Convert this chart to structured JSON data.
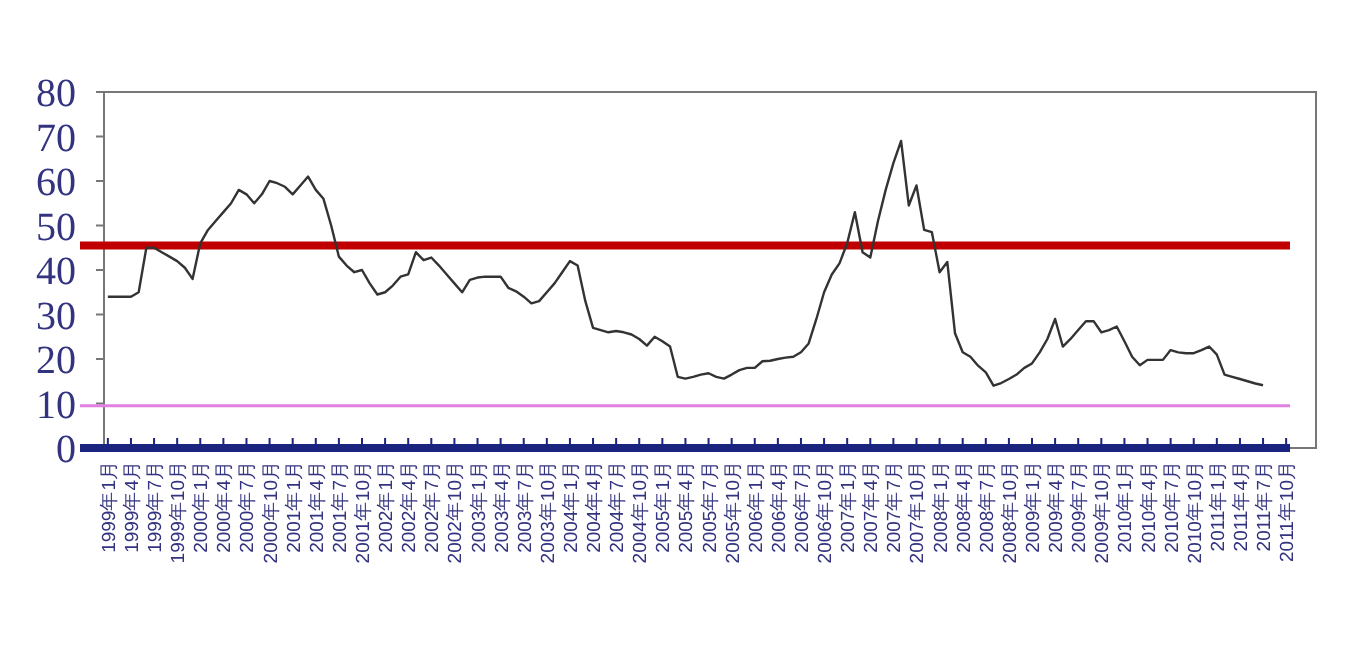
{
  "chart_data": {
    "type": "line",
    "categories": [
      "1999年1月",
      null,
      null,
      "1999年4月",
      null,
      null,
      "1999年7月",
      null,
      null,
      "1999年10月",
      null,
      null,
      "2000年1月",
      null,
      null,
      "2000年4月",
      null,
      null,
      "2000年7月",
      null,
      null,
      "2000年10月",
      null,
      null,
      "2001年1月",
      null,
      null,
      "2001年4月",
      null,
      null,
      "2001年7月",
      null,
      null,
      "2001年10月",
      null,
      null,
      "2002年1月",
      null,
      null,
      "2002年4月",
      null,
      null,
      "2002年7月",
      null,
      null,
      "2002年10月",
      null,
      null,
      "2003年1月",
      null,
      null,
      "2003年4月",
      null,
      null,
      "2003年7月",
      null,
      null,
      "2003年10月",
      null,
      null,
      "2004年1月",
      null,
      null,
      "2004年4月",
      null,
      null,
      "2004年7月",
      null,
      null,
      "2004年10月",
      null,
      null,
      "2005年1月",
      null,
      null,
      "2005年4月",
      null,
      null,
      "2005年7月",
      null,
      null,
      "2005年10月",
      null,
      null,
      "2006年1月",
      null,
      null,
      "2006年4月",
      null,
      null,
      "2006年7月",
      null,
      null,
      "2006年10月",
      null,
      null,
      "2007年1月",
      null,
      null,
      "2007年4月",
      null,
      null,
      "2007年7月",
      null,
      null,
      "2007年10月",
      null,
      null,
      "2008年1月",
      null,
      null,
      "2008年4月",
      null,
      null,
      "2008年7月",
      null,
      null,
      "2008年10月",
      null,
      null,
      "2009年1月",
      null,
      null,
      "2009年4月",
      null,
      null,
      "2009年7月",
      null,
      null,
      "2009年10月",
      null,
      null,
      "2010年1月",
      null,
      null,
      "2010年4月",
      null,
      null,
      "2010年7月",
      null,
      null,
      "2010年10月",
      null,
      null,
      "2011年1月",
      null,
      null,
      "2011年4月",
      null,
      null,
      "2011年7月",
      null,
      null,
      "2011年10月"
    ],
    "series": [
      {
        "color": "#333333",
        "values": [
          34,
          34,
          34,
          34,
          35,
          45,
          45,
          44,
          43,
          42,
          40.5,
          38,
          46,
          49,
          51,
          53,
          55,
          58,
          57,
          55,
          57,
          60,
          59.5,
          58.7,
          57,
          59,
          61,
          58,
          56,
          50,
          43,
          41,
          39.5,
          40,
          37,
          34.5,
          35,
          36.5,
          38.5,
          39,
          44,
          42.2,
          42.8,
          41,
          39,
          37,
          35,
          37.8,
          38.3,
          38.5,
          38.5,
          38.5,
          36,
          35.2,
          34,
          32.5,
          33,
          35,
          37,
          39.5,
          42,
          41,
          33,
          27,
          26.5,
          26,
          26.3,
          26,
          25.5,
          24.5,
          23,
          25,
          24,
          22.8,
          16,
          15.6,
          16,
          16.5,
          16.8,
          16,
          15.6,
          16.5,
          17.5,
          18,
          18,
          19.5,
          19.6,
          20,
          20.3,
          20.5,
          21.5,
          23.5,
          29,
          35,
          39,
          41.5,
          46,
          53,
          44,
          42.8,
          51,
          58,
          64,
          69,
          54.5,
          59,
          49,
          48.5,
          39.5,
          41.8,
          25.8,
          21.5,
          20.5,
          18.5,
          17,
          14,
          14.6,
          15.5,
          16.5,
          18,
          19,
          21.5,
          24.5,
          29,
          22.8,
          24.5,
          26.5,
          28.5,
          28.5,
          26,
          26.5,
          27.3,
          24,
          20.5,
          18.6,
          19.8,
          19.8,
          19.8,
          22,
          21.5,
          21.3,
          21.3,
          22,
          22.8,
          21,
          16.5,
          16,
          15.5,
          15,
          14.5,
          14.1,
          null,
          null,
          null
        ]
      }
    ],
    "ylim": [
      0,
      80
    ],
    "yticks": [
      0,
      10,
      20,
      30,
      40,
      50,
      60,
      70,
      80
    ],
    "ref_lines": [
      {
        "axis": "y",
        "value": 45.5,
        "color": "#c00000"
      },
      {
        "axis": "y",
        "value": 9.5,
        "color": "#e080e0"
      }
    ],
    "grid": false
  }
}
